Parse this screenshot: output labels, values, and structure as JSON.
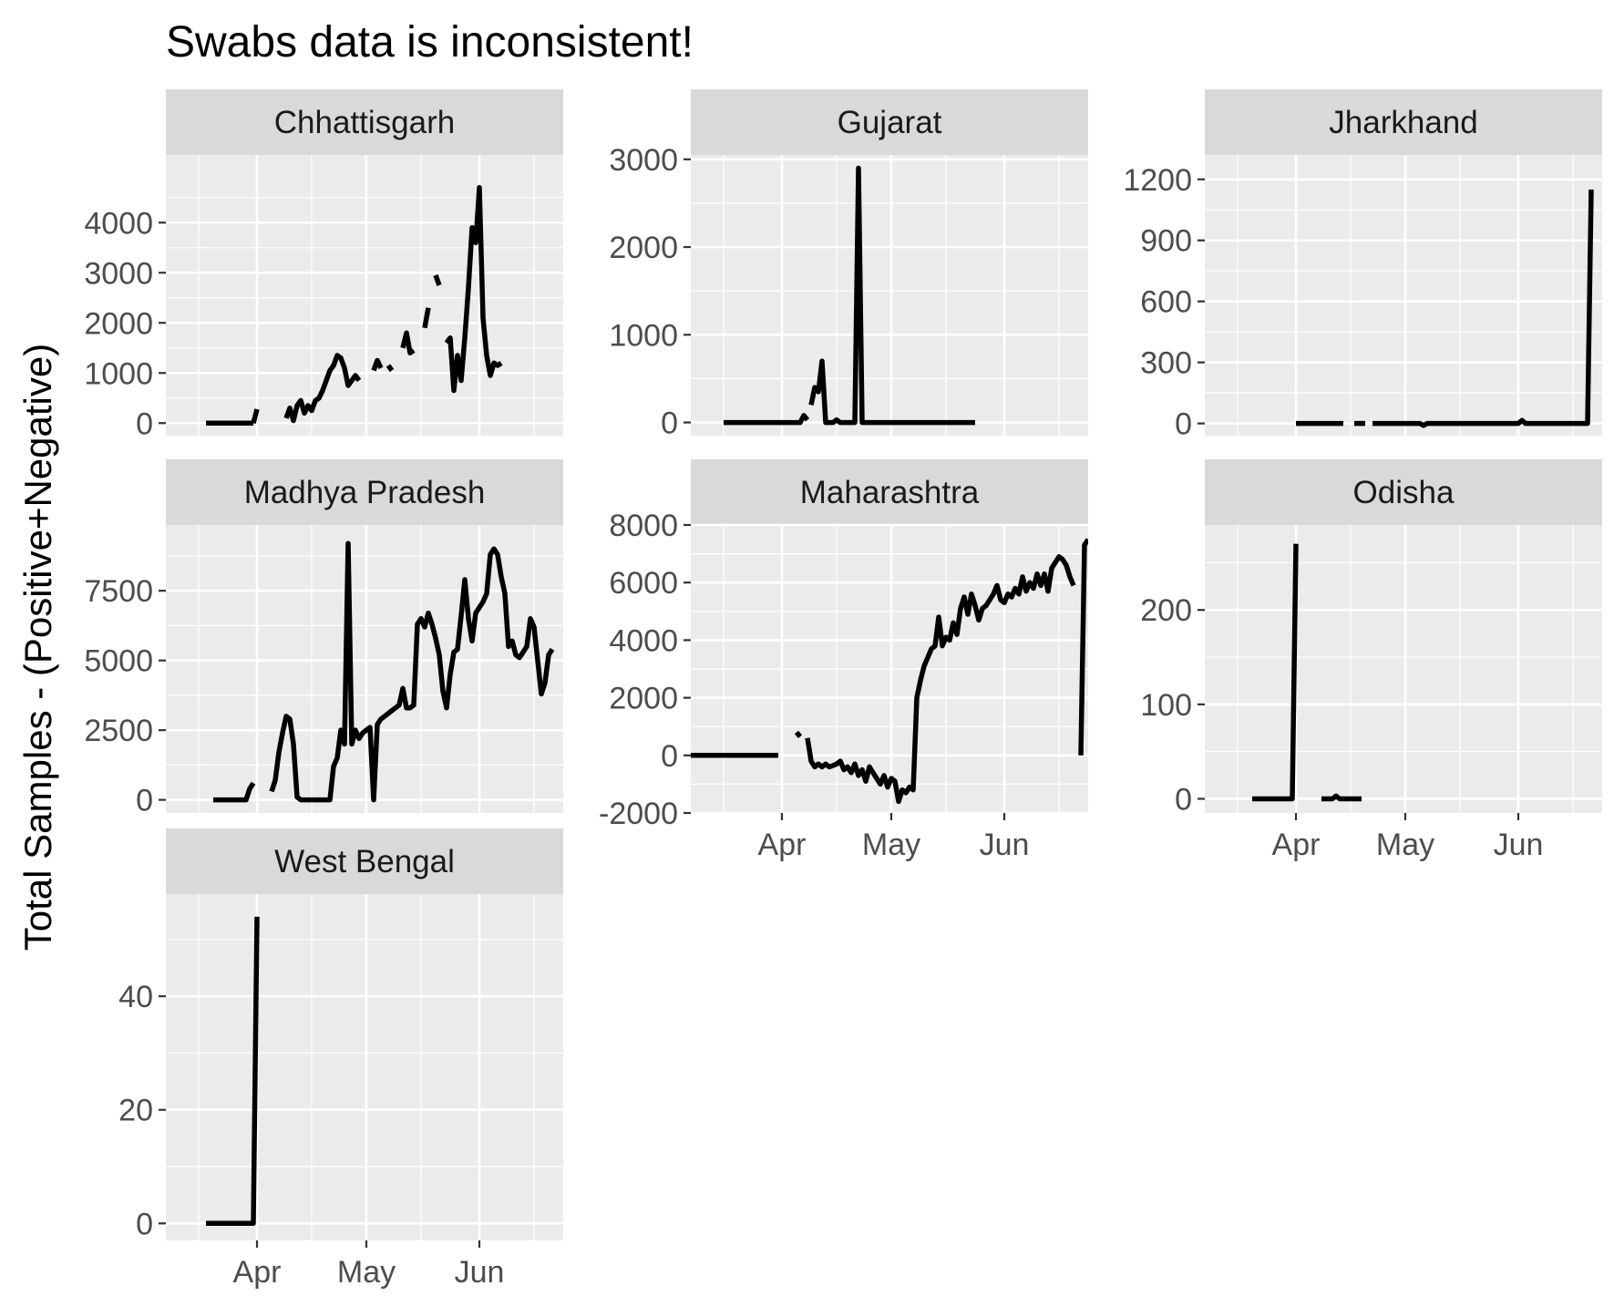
{
  "chart_data": {
    "type": "line",
    "title": "Swabs data is inconsistent!",
    "ylabel": "Total Samples - (Positive+Negative)",
    "xlabel": "",
    "grid": true,
    "legend": "none",
    "x_ticks": [
      {
        "label": "Apr",
        "date": "2020-04-01"
      },
      {
        "label": "May",
        "date": "2020-05-01"
      },
      {
        "label": "Jun",
        "date": "2020-06-01"
      }
    ],
    "x_range": [
      "2020-03-07",
      "2020-06-24"
    ],
    "line_color": "#000000",
    "panels": [
      {
        "name": "Chhattisgarh",
        "ylim": [
          -250,
          5350
        ],
        "y_ticks": [
          0,
          1000,
          2000,
          3000,
          4000
        ],
        "series": [
          {
            "x": [
              "2020-03-18",
              "2020-03-31"
            ],
            "y": [
              0,
              0
            ]
          },
          {
            "x": [
              "2020-03-31",
              "2020-04-01"
            ],
            "y": [
              0,
              280
            ]
          },
          {
            "x": [
              "2020-04-09",
              "2020-04-10",
              "2020-04-11",
              "2020-04-12",
              "2020-04-13",
              "2020-04-14",
              "2020-04-15",
              "2020-04-16",
              "2020-04-17",
              "2020-04-18",
              "2020-04-19",
              "2020-04-20",
              "2020-04-21",
              "2020-04-22",
              "2020-04-23",
              "2020-04-24",
              "2020-04-25",
              "2020-04-26",
              "2020-04-27",
              "2020-04-28",
              "2020-04-29"
            ],
            "y": [
              100,
              300,
              50,
              350,
              450,
              200,
              350,
              250,
              450,
              500,
              650,
              850,
              1050,
              1150,
              1350,
              1300,
              1100,
              750,
              850,
              950,
              850
            ]
          },
          {
            "x": [
              "2020-05-03",
              "2020-05-04",
              "2020-05-05"
            ],
            "y": [
              1050,
              1250,
              1100
            ]
          },
          {
            "x": [
              "2020-05-07",
              "2020-05-08"
            ],
            "y": [
              1150,
              1050
            ]
          },
          {
            "x": [
              "2020-05-11",
              "2020-05-12",
              "2020-05-13",
              "2020-05-14"
            ],
            "y": [
              1500,
              1800,
              1400,
              1450
            ]
          },
          {
            "x": [
              "2020-05-17",
              "2020-05-18"
            ],
            "y": [
              1900,
              2300
            ]
          },
          {
            "x": [
              "2020-05-20",
              "2020-05-21"
            ],
            "y": [
              2950,
              2750
            ]
          },
          {
            "x": [
              "2020-05-23",
              "2020-05-24",
              "2020-05-25",
              "2020-05-26",
              "2020-05-27",
              "2020-05-28",
              "2020-05-29",
              "2020-05-30",
              "2020-05-31",
              "2020-06-01",
              "2020-06-02",
              "2020-06-03",
              "2020-06-04",
              "2020-06-05",
              "2020-06-06",
              "2020-06-07"
            ],
            "y": [
              1600,
              1700,
              650,
              1350,
              850,
              1700,
              2700,
              3900,
              3600,
              4700,
              2100,
              1350,
              950,
              1200,
              1150,
              1200
            ]
          }
        ]
      },
      {
        "name": "Gujarat",
        "ylim": [
          -150,
          3050
        ],
        "y_ticks": [
          0,
          1000,
          2000,
          3000
        ],
        "series": [
          {
            "x": [
              "2020-03-16",
              "2020-04-06",
              "2020-04-07",
              "2020-04-08"
            ],
            "y": [
              0,
              0,
              80,
              30
            ]
          },
          {
            "x": [
              "2020-04-09",
              "2020-04-10",
              "2020-04-11",
              "2020-04-12",
              "2020-04-13",
              "2020-04-14",
              "2020-04-15",
              "2020-04-16",
              "2020-04-17",
              "2020-04-18",
              "2020-04-19",
              "2020-04-20",
              "2020-04-21",
              "2020-04-22",
              "2020-04-23",
              "2020-04-24"
            ],
            "y": [
              200,
              400,
              350,
              700,
              0,
              0,
              0,
              30,
              0,
              0,
              0,
              0,
              0,
              2900,
              0,
              0
            ]
          },
          {
            "x": [
              "2020-04-24",
              "2020-05-24"
            ],
            "y": [
              0,
              0
            ]
          }
        ]
      },
      {
        "name": "Jharkhand",
        "ylim": [
          -60,
          1320
        ],
        "y_ticks": [
          0,
          300,
          600,
          900,
          1200
        ],
        "series": [
          {
            "x": [
              "2020-04-01",
              "2020-04-14"
            ],
            "y": [
              0,
              0
            ]
          },
          {
            "x": [
              "2020-04-17",
              "2020-04-20"
            ],
            "y": [
              0,
              0
            ]
          },
          {
            "x": [
              "2020-04-22",
              "2020-05-05",
              "2020-05-06",
              "2020-05-07",
              "2020-06-01",
              "2020-06-02",
              "2020-06-03",
              "2020-06-20",
              "2020-06-21"
            ],
            "y": [
              0,
              0,
              -10,
              0,
              0,
              15,
              0,
              0,
              1150
            ]
          }
        ]
      },
      {
        "name": "Madhya Pradesh",
        "ylim": [
          -470,
          9860
        ],
        "y_ticks": [
          0,
          2500,
          5000,
          7500
        ],
        "series": [
          {
            "x": [
              "2020-03-20",
              "2020-03-29",
              "2020-03-30",
              "2020-03-31"
            ],
            "y": [
              0,
              0,
              400,
              600
            ]
          },
          {
            "x": [
              "2020-04-05",
              "2020-04-06",
              "2020-04-07",
              "2020-04-08",
              "2020-04-09",
              "2020-04-10",
              "2020-04-11",
              "2020-04-12",
              "2020-04-13",
              "2020-04-14",
              "2020-04-15",
              "2020-04-16",
              "2020-04-17",
              "2020-04-18",
              "2020-04-19",
              "2020-04-20",
              "2020-04-21",
              "2020-04-22",
              "2020-04-23",
              "2020-04-24",
              "2020-04-25",
              "2020-04-26",
              "2020-04-27",
              "2020-04-28",
              "2020-04-29",
              "2020-04-30",
              "2020-05-01",
              "2020-05-02",
              "2020-05-03",
              "2020-05-04",
              "2020-05-05",
              "2020-05-06",
              "2020-05-07",
              "2020-05-08",
              "2020-05-09",
              "2020-05-10",
              "2020-05-11",
              "2020-05-12",
              "2020-05-13",
              "2020-05-14",
              "2020-05-15",
              "2020-05-16",
              "2020-05-17",
              "2020-05-18",
              "2020-05-19",
              "2020-05-20",
              "2020-05-21",
              "2020-05-22",
              "2020-05-23",
              "2020-05-24",
              "2020-05-25",
              "2020-05-26",
              "2020-05-27",
              "2020-05-28",
              "2020-05-29",
              "2020-05-30",
              "2020-05-31",
              "2020-06-01",
              "2020-06-02",
              "2020-06-03",
              "2020-06-04",
              "2020-06-05",
              "2020-06-06",
              "2020-06-07",
              "2020-06-08",
              "2020-06-09",
              "2020-06-10",
              "2020-06-11",
              "2020-06-12",
              "2020-06-13",
              "2020-06-14",
              "2020-06-15",
              "2020-06-16",
              "2020-06-17",
              "2020-06-18",
              "2020-06-19",
              "2020-06-20",
              "2020-06-21"
            ],
            "y": [
              300,
              700,
              1700,
              2400,
              3000,
              2900,
              2000,
              100,
              0,
              0,
              0,
              0,
              0,
              0,
              0,
              0,
              0,
              1200,
              1500,
              2500,
              2000,
              9200,
              2000,
              2500,
              2200,
              2400,
              2500,
              2600,
              0,
              2700,
              2900,
              3000,
              3100,
              3200,
              3300,
              3400,
              4000,
              3300,
              3300,
              3400,
              6300,
              6500,
              6200,
              6700,
              6300,
              5800,
              5200,
              3900,
              3300,
              4500,
              5300,
              5400,
              6600,
              7900,
              6500,
              5700,
              6700,
              6900,
              7100,
              7400,
              8800,
              9000,
              8800,
              8000,
              7400,
              5500,
              5700,
              5200,
              5100,
              5300,
              5500,
              6500,
              6200,
              5000,
              3800,
              4200,
              5200,
              5400
            ]
          }
        ]
      },
      {
        "name": "Maharashtra",
        "ylim": [
          -2000,
          8000
        ],
        "y_ticks": [
          -2000,
          0,
          2000,
          4000,
          6000,
          8000
        ],
        "series": [
          {
            "x": [
              "2020-03-06",
              "2020-03-31"
            ],
            "y": [
              0,
              0
            ]
          },
          {
            "x": [
              "2020-04-05",
              "2020-04-06"
            ],
            "y": [
              800,
              650
            ]
          },
          {
            "x": [
              "2020-04-08",
              "2020-04-09",
              "2020-04-10",
              "2020-04-11",
              "2020-04-12",
              "2020-04-13",
              "2020-04-14",
              "2020-04-15",
              "2020-04-16",
              "2020-04-17",
              "2020-04-18",
              "2020-04-19",
              "2020-04-20",
              "2020-04-21",
              "2020-04-22",
              "2020-04-23",
              "2020-04-24",
              "2020-04-25",
              "2020-04-26",
              "2020-04-27",
              "2020-04-28",
              "2020-04-29",
              "2020-04-30",
              "2020-05-01",
              "2020-05-02",
              "2020-05-03",
              "2020-05-04",
              "2020-05-05",
              "2020-05-06",
              "2020-05-07",
              "2020-05-08",
              "2020-05-09",
              "2020-05-10",
              "2020-05-11",
              "2020-05-12",
              "2020-05-13",
              "2020-05-14",
              "2020-05-15",
              "2020-05-16",
              "2020-05-17",
              "2020-05-18",
              "2020-05-19",
              "2020-05-20",
              "2020-05-21",
              "2020-05-22",
              "2020-05-23",
              "2020-05-24",
              "2020-05-25",
              "2020-05-26",
              "2020-05-27",
              "2020-05-28",
              "2020-05-29",
              "2020-05-30",
              "2020-05-31",
              "2020-06-01",
              "2020-06-02",
              "2020-06-03",
              "2020-06-04",
              "2020-06-05",
              "2020-06-06",
              "2020-06-07",
              "2020-06-08",
              "2020-06-09",
              "2020-06-10",
              "2020-06-11",
              "2020-06-12",
              "2020-06-13",
              "2020-06-14",
              "2020-06-15",
              "2020-06-16",
              "2020-06-17",
              "2020-06-18",
              "2020-06-19",
              "2020-06-20"
            ],
            "y": [
              600,
              -200,
              -400,
              -300,
              -400,
              -300,
              -400,
              -350,
              -300,
              -200,
              -500,
              -400,
              -600,
              -300,
              -700,
              -500,
              -900,
              -400,
              -600,
              -800,
              -1000,
              -700,
              -1100,
              -800,
              -900,
              -1600,
              -1200,
              -1300,
              -1100,
              -1200,
              2000,
              2600,
              3100,
              3400,
              3700,
              3800,
              4800,
              3800,
              4100,
              4000,
              4600,
              4200,
              5100,
              5500,
              4900,
              5600,
              5200,
              4700,
              5100,
              5200,
              5400,
              5600,
              5900,
              5400,
              5300,
              5600,
              5500,
              5800,
              5600,
              6200,
              5700,
              6000,
              5800,
              6300,
              5900,
              6300,
              5700,
              6500,
              6700,
              6900,
              6800,
              6600,
              6200,
              5900
            ]
          },
          {
            "x": [
              "2020-06-22",
              "2020-06-23",
              "2020-06-24"
            ],
            "y": [
              0,
              7300,
              7500
            ]
          }
        ]
      },
      {
        "name": "Odisha",
        "ylim": [
          -15,
          290
        ],
        "y_ticks": [
          0,
          100,
          200
        ],
        "series": [
          {
            "x": [
              "2020-03-20",
              "2020-03-31",
              "2020-04-01"
            ],
            "y": [
              0,
              0,
              270
            ]
          },
          {
            "x": [
              "2020-04-08",
              "2020-04-11",
              "2020-04-12",
              "2020-04-13",
              "2020-04-19"
            ],
            "y": [
              0,
              0,
              3,
              0,
              0
            ]
          }
        ]
      },
      {
        "name": "West Bengal",
        "ylim": [
          -3,
          58
        ],
        "y_ticks": [
          0,
          20,
          40
        ],
        "series": [
          {
            "x": [
              "2020-03-18",
              "2020-03-31",
              "2020-04-01"
            ],
            "y": [
              0,
              0,
              54
            ]
          }
        ]
      }
    ]
  }
}
